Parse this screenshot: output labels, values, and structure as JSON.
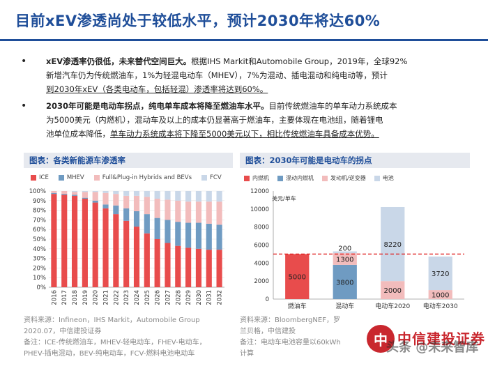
{
  "title": "目前xEV渗透尚处于较低水平，预计2030年将达60%",
  "bullets": [
    {
      "bold": "xEV渗透率仍很低，未来替代空间巨大。",
      "lines": [
        "根据IHS Markit和Automobile Group，2019年，全球92%",
        "新增汽车仍为传统燃油车，1%为轻混电动车（MHEV），7%为混动、插电混动和纯电动等，预计"
      ],
      "underline": "到2030年xEV（各类电动车，包括轻混）渗透率将达到60%。"
    },
    {
      "bold": "2030年可能是电动车拐点，纯电单车成本将降至燃油车水平。",
      "lines": [
        "目前传统燃油车的单车动力系统成本",
        "为5000美元（内燃机），混动车及以上的成本仍显著高于燃油车，主要体现在电池组，随着锂电",
        "池单位成本降低，"
      ],
      "underline": "单车动力系统成本将下降至5000美元以下，相比传统燃油车具备成本优势。"
    }
  ],
  "figure_left": {
    "header": "图表：各类新能源车渗透率",
    "source_lines": [
      "资料来源：Infineon，IHS Markit，Automobile Group",
      "2020.07，中信建投证券",
      "备注：ICE-传统燃油车，MHEV-轻电动车，FHEV-电动车，",
      "PHEV-插电混动，BEV-纯电动车，FCV-燃料电池电动车"
    ]
  },
  "figure_right": {
    "header": "图表：2030年可能是电动车的拐点",
    "unit_label": "美元/单车",
    "source_lines": [
      "资料来源：BloombergNEF，罗",
      "兰贝格，中信建投",
      "备注：电动车电池容量以60kWh",
      "计算"
    ]
  },
  "logo": {
    "mark": "中",
    "name": "中信建投证券",
    "watermark": "头条 @未来智库"
  },
  "chart_data": [
    {
      "type": "bar",
      "stacked": true,
      "title": "各类新能源车渗透率",
      "categories": [
        "2016",
        "2017",
        "2018",
        "2019",
        "2020",
        "2021",
        "2022",
        "2023",
        "2024",
        "2025",
        "2026",
        "2027",
        "2028",
        "2029",
        "2030",
        "2031",
        "2032"
      ],
      "series": [
        {
          "name": "ICE",
          "color": "#e84c4c",
          "values": [
            97,
            96,
            95,
            92,
            88,
            82,
            76,
            69,
            63,
            56,
            50,
            46,
            43,
            41,
            40,
            39,
            39
          ]
        },
        {
          "name": "MHEV",
          "color": "#6f9bc2",
          "values": [
            1,
            1,
            1,
            1,
            2,
            4,
            9,
            13,
            16,
            20,
            22,
            24,
            25,
            26,
            27,
            27,
            26
          ]
        },
        {
          "name": "Full&Plug-in Hybrids and BEVs",
          "color": "#f2bcbc",
          "values": [
            2,
            3,
            3,
            6,
            9,
            12,
            12,
            13,
            16,
            18,
            20,
            21,
            22,
            22,
            22,
            23,
            24
          ]
        },
        {
          "name": "FCV",
          "color": "#c9d7e8",
          "values": [
            0,
            0,
            1,
            1,
            1,
            2,
            3,
            5,
            5,
            6,
            8,
            9,
            10,
            11,
            11,
            11,
            11
          ]
        }
      ],
      "ylim": [
        0,
        100
      ],
      "ytick_step": 10,
      "y_suffix": "%",
      "xlabel": "",
      "ylabel": "",
      "legend": "top"
    },
    {
      "type": "bar",
      "stacked": true,
      "title": "2030年可能是电动车的拐点",
      "categories": [
        "燃油车",
        "混动车",
        "电动车2020",
        "电动车2030"
      ],
      "series": [
        {
          "name": "内燃机",
          "color": "#e84c4c",
          "values": [
            5000,
            0,
            0,
            0
          ]
        },
        {
          "name": "混动内燃机",
          "color": "#6f9bc2",
          "values": [
            0,
            3800,
            0,
            0
          ]
        },
        {
          "name": "发动机/逆变器",
          "color": "#f2bcbc",
          "values": [
            0,
            1300,
            2000,
            1000
          ]
        },
        {
          "name": "电池",
          "color": "#c9d7e8",
          "values": [
            0,
            200,
            8220,
            3720
          ]
        }
      ],
      "labels": [
        [
          "5000",
          "",
          "",
          ""
        ],
        [
          "",
          "3800",
          "",
          ""
        ],
        [
          "",
          "1300",
          "2000",
          "1000"
        ],
        [
          "",
          "200",
          "8220",
          "3720"
        ]
      ],
      "reference_line": 5000,
      "ylim": [
        0,
        12000
      ],
      "ytick_step": 2000,
      "ylabel": "美元/单车",
      "legend": "top"
    }
  ]
}
